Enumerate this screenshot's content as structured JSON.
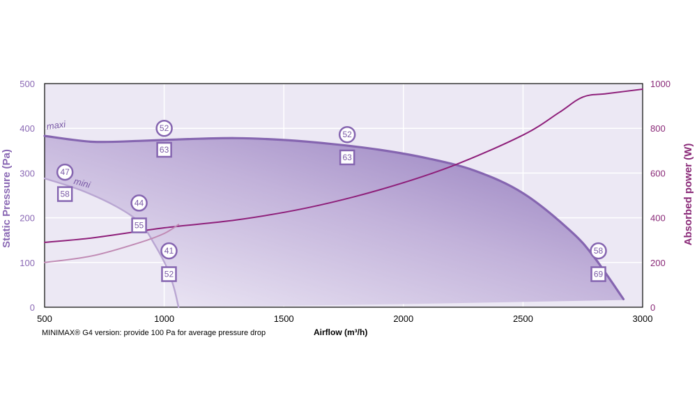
{
  "chart_data": {
    "type": "line",
    "note_text": "MINIMAX® G4 version: provide 100 Pa for average pressure drop",
    "xlabel": "Airflow (m³/h)",
    "ylabel_left": "Static Pressure (Pa)",
    "ylabel_right": "Absorbed power (W)",
    "xlim": [
      500,
      3000
    ],
    "ylim_left": [
      0,
      500
    ],
    "ylim_right": [
      0,
      1000
    ],
    "x_ticks": [
      "500",
      "1000",
      "1500",
      "2000",
      "2500",
      "3000"
    ],
    "y_left_ticks": [
      "0",
      "100",
      "200",
      "300",
      "400",
      "500"
    ],
    "y_right_ticks": [
      "0",
      "200",
      "400",
      "600",
      "800",
      "1000"
    ],
    "grid": true,
    "colors": {
      "plot_bg": "#ece8f4",
      "grid": "#ffffff",
      "pressure": "#8565b0",
      "pressure_light": "#b9a6d2",
      "power": "#8e1f7a",
      "power_light": "#c08ab4",
      "area_dark": "#9a84c2",
      "area_light": "#f1eef8"
    },
    "series": [
      {
        "name": "maxi",
        "axis": "left",
        "x": [
          500,
          700,
          900,
          1100,
          1300,
          1500,
          1700,
          1900,
          2100,
          2300,
          2500,
          2700,
          2800,
          2920
        ],
        "y": [
          383,
          370,
          372,
          376,
          378,
          374,
          365,
          352,
          333,
          305,
          255,
          170,
          110,
          18
        ]
      },
      {
        "name": "mini",
        "axis": "left",
        "x": [
          500,
          650,
          800,
          900,
          960,
          1010,
          1040,
          1060
        ],
        "y": [
          288,
          262,
          225,
          188,
          140,
          90,
          45,
          0
        ]
      },
      {
        "axis": "right",
        "x": [
          500,
          700,
          1000,
          1300,
          1600,
          1900,
          2200,
          2500,
          2650,
          2750,
          2850,
          3000
        ],
        "y": [
          290,
          310,
          355,
          390,
          445,
          525,
          630,
          770,
          870,
          940,
          955,
          975
        ]
      },
      {
        "axis": "right",
        "x": [
          500,
          700,
          900,
          1000,
          1060
        ],
        "y": [
          200,
          230,
          290,
          330,
          370
        ]
      }
    ],
    "lower_boundary": {
      "x": [
        1060,
        2000,
        2920
      ],
      "y": [
        0,
        7,
        16
      ]
    },
    "annotations": [
      {
        "x": 1000,
        "y": 400,
        "shape": "circle",
        "text": "52"
      },
      {
        "x": 1000,
        "y": 352,
        "shape": "square",
        "text": "63"
      },
      {
        "x": 1765,
        "y": 386,
        "shape": "circle",
        "text": "52"
      },
      {
        "x": 1765,
        "y": 335,
        "shape": "square",
        "text": "63"
      },
      {
        "x": 585,
        "y": 302,
        "shape": "circle",
        "text": "47"
      },
      {
        "x": 585,
        "y": 253,
        "shape": "square",
        "text": "58"
      },
      {
        "x": 895,
        "y": 233,
        "shape": "circle",
        "text": "44"
      },
      {
        "x": 895,
        "y": 183,
        "shape": "square",
        "text": "55"
      },
      {
        "x": 1020,
        "y": 126,
        "shape": "circle",
        "text": "41"
      },
      {
        "x": 1020,
        "y": 74,
        "shape": "square",
        "text": "52"
      },
      {
        "x": 2815,
        "y": 126,
        "shape": "circle",
        "text": "58"
      },
      {
        "x": 2815,
        "y": 74,
        "shape": "square",
        "text": "69"
      }
    ],
    "labels": [
      {
        "x": 510,
        "y": 397,
        "text": "maxi",
        "rotate": -8
      },
      {
        "x": 620,
        "y": 276,
        "text": "mini",
        "rotate": 15
      }
    ]
  }
}
